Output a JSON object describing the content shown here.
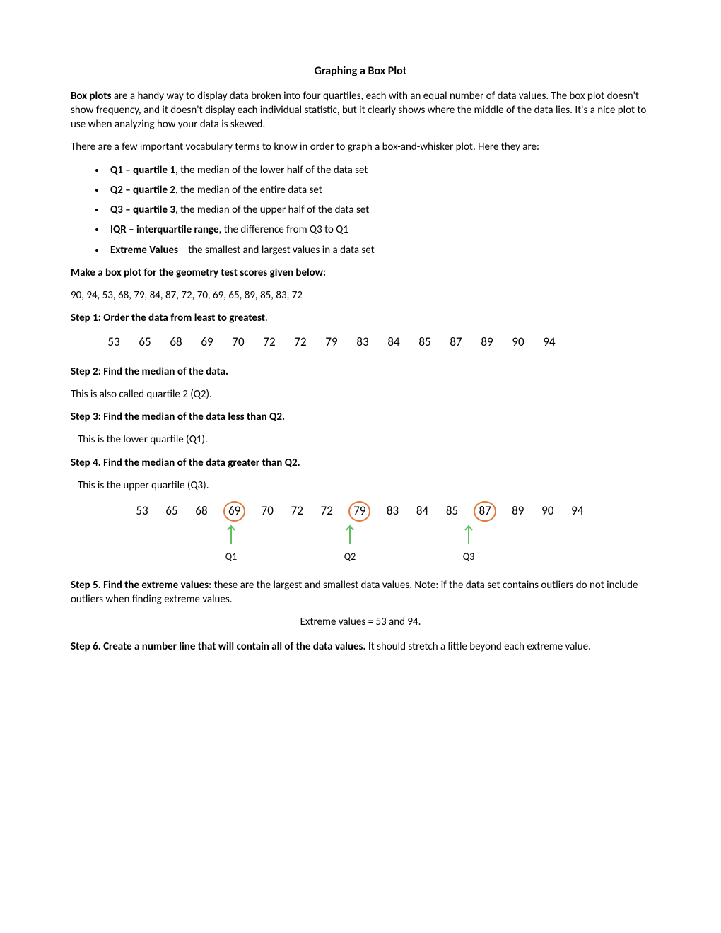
{
  "title": "Graphing a Box Plot",
  "intro": {
    "p1_bold": "Box plots",
    "p1_rest": " are a handy way to display data broken into four quartiles, each with an equal number of data values. The box plot doesn't show frequency, and it doesn't display each individual statistic, but it clearly shows where the middle of the data lies. It's a nice plot to use when analyzing how your data is skewed.",
    "p2": "There are a few important vocabulary terms to know in order to graph a box-and-whisker plot. Here they are:"
  },
  "vocab": [
    {
      "term": "Q1 – quartile 1",
      "def": ", the median of the lower half of the data set"
    },
    {
      "term": "Q2 – quartile 2",
      "def": ", the median of the entire data set"
    },
    {
      "term": "Q3 – quartile 3",
      "def": ", the median of the upper half of the data set"
    },
    {
      "term": "IQR – interquartile range",
      "def": ", the difference from Q3 to Q1"
    },
    {
      "term": "Extreme Values",
      "def": " – the smallest and largest values in a data set"
    }
  ],
  "prompt": "Make a box plot for the geometry test scores given below:",
  "raw_data": "90, 94, 53, 68, 79, 84, 87, 72, 70, 69, 65, 89, 85, 83, 72",
  "step1_head": "Step 1: Order the data from least to greatest",
  "step1_dot": ".",
  "ordered": [
    "53",
    "65",
    "68",
    "69",
    "70",
    "72",
    "72",
    "79",
    "83",
    "84",
    "85",
    "87",
    "89",
    "90",
    "94"
  ],
  "step2_head": "Step 2: Find the median of the data.",
  "step2_text": "This is also called quartile 2 (Q2).",
  "step3_head": "Step 3: Find the median of the data less than Q2.",
  "step3_text": "This is the lower quartile (Q1).",
  "step4_head": "Step 4. Find the median of the data greater than Q2.",
  "step4_text": "This is the upper quartile (Q3).",
  "quartile_values": [
    "53",
    "65",
    "68",
    "69",
    "70",
    "72",
    "72",
    "79",
    "83",
    "84",
    "85",
    "87",
    "89",
    "90",
    "94"
  ],
  "circled_idx": [
    3,
    7,
    11
  ],
  "q_labels": {
    "3": "Q1",
    "7": "Q2",
    "11": "Q3"
  },
  "circle_color": "#e07b3f",
  "arrow_color": "#5fbf5f",
  "step5_head": "Step 5. Find the extreme values",
  "step5_rest": ": these are the largest and smallest data values. Note: if the data set contains outliers do not include outliers when finding extreme values.",
  "extreme_text": "Extreme values = 53 and 94.",
  "step6_head": "Step 6. Create a number line that will contain all of the data values.",
  "step6_rest": "  It should stretch a little beyond each extreme value."
}
